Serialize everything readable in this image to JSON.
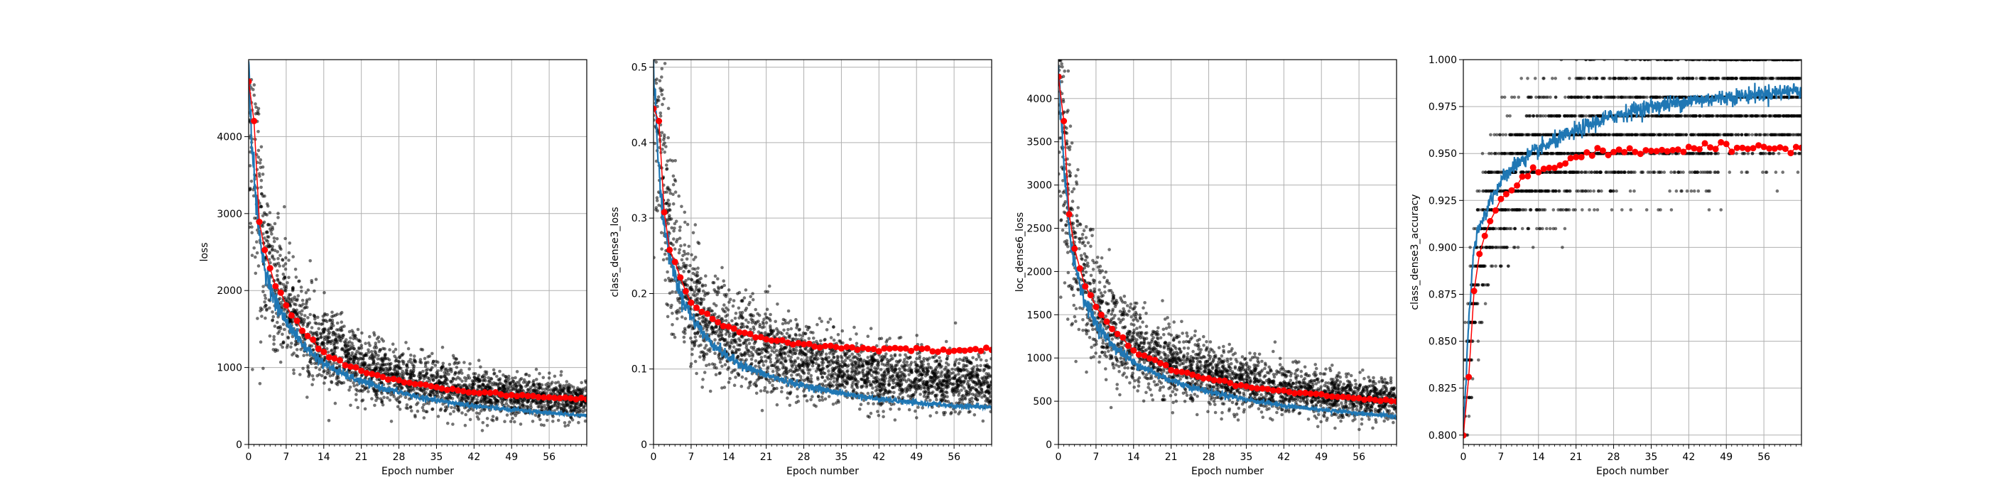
{
  "figure": {
    "colors": {
      "train": "#1f77b4",
      "validation": "#ff0000",
      "batch": "#000000",
      "grid": "#b0b0b0"
    }
  },
  "chart_data": [
    {
      "type": "line",
      "xlabel": "Epoch number",
      "ylabel": "loss",
      "xlim": [
        0,
        63
      ],
      "ylim": [
        0,
        5000
      ],
      "xticks": [
        0,
        7,
        14,
        21,
        28,
        35,
        42,
        49,
        56
      ],
      "yticks": [
        0,
        1000,
        2000,
        3000,
        4000
      ],
      "grid": true,
      "series": [
        {
          "role": "batch-scatter",
          "x": [
            0,
            1,
            2,
            3,
            5,
            7,
            10,
            14,
            18,
            21,
            25,
            28,
            32,
            35,
            40,
            42,
            46,
            49,
            53,
            56,
            60,
            63
          ],
          "y": [
            4800,
            3900,
            3000,
            2450,
            2050,
            1800,
            1500,
            1250,
            1100,
            1000,
            920,
            860,
            800,
            760,
            700,
            680,
            650,
            630,
            610,
            590,
            570,
            560
          ]
        },
        {
          "role": "train-line",
          "x": [
            0,
            1,
            2,
            3,
            5,
            7,
            10,
            14,
            18,
            21,
            25,
            28,
            32,
            35,
            40,
            42,
            46,
            49,
            53,
            56,
            60,
            63
          ],
          "y": [
            4800,
            3500,
            2700,
            2300,
            1850,
            1600,
            1300,
            1050,
            900,
            820,
            730,
            680,
            610,
            570,
            520,
            500,
            470,
            450,
            430,
            410,
            390,
            370
          ]
        },
        {
          "role": "validation-points",
          "x": [
            0,
            1,
            2,
            3,
            5,
            7,
            10,
            14,
            18,
            21,
            25,
            28,
            32,
            35,
            40,
            42,
            46,
            49,
            53,
            56,
            60,
            63
          ],
          "y": [
            4700,
            4120,
            2950,
            2500,
            2050,
            1800,
            1480,
            1200,
            1050,
            960,
            880,
            830,
            780,
            740,
            700,
            680,
            660,
            640,
            630,
            610,
            600,
            590
          ]
        }
      ]
    },
    {
      "type": "line",
      "xlabel": "Epoch number",
      "ylabel": "class_dense3_loss",
      "xlim": [
        0,
        63
      ],
      "ylim": [
        0,
        0.51
      ],
      "xticks": [
        0,
        7,
        14,
        21,
        28,
        35,
        42,
        49,
        56
      ],
      "yticks": [
        0.0,
        0.1,
        0.2,
        0.3,
        0.4,
        0.5
      ],
      "grid": true,
      "series": [
        {
          "role": "batch-scatter",
          "x": [
            0,
            1,
            2,
            3,
            5,
            7,
            10,
            14,
            18,
            21,
            25,
            28,
            32,
            35,
            40,
            42,
            46,
            49,
            53,
            56,
            60,
            63
          ],
          "y": [
            0.5,
            0.42,
            0.32,
            0.27,
            0.22,
            0.19,
            0.16,
            0.145,
            0.135,
            0.125,
            0.115,
            0.11,
            0.105,
            0.1,
            0.095,
            0.092,
            0.09,
            0.088,
            0.085,
            0.083,
            0.081,
            0.08
          ]
        },
        {
          "role": "train-line",
          "x": [
            0,
            1,
            2,
            3,
            5,
            7,
            10,
            14,
            18,
            21,
            25,
            28,
            32,
            35,
            40,
            42,
            46,
            49,
            53,
            56,
            60,
            63
          ],
          "y": [
            0.5,
            0.36,
            0.29,
            0.25,
            0.2,
            0.17,
            0.14,
            0.115,
            0.1,
            0.092,
            0.083,
            0.078,
            0.072,
            0.068,
            0.062,
            0.06,
            0.057,
            0.055,
            0.053,
            0.051,
            0.05,
            0.049
          ]
        },
        {
          "role": "validation-points",
          "x": [
            0,
            1,
            2,
            3,
            5,
            7,
            10,
            14,
            18,
            21,
            25,
            28,
            32,
            35,
            40,
            42,
            46,
            49,
            53,
            56,
            60,
            63
          ],
          "y": [
            0.45,
            0.42,
            0.31,
            0.26,
            0.22,
            0.19,
            0.17,
            0.155,
            0.145,
            0.14,
            0.135,
            0.133,
            0.13,
            0.128,
            0.127,
            0.127,
            0.126,
            0.126,
            0.125,
            0.125,
            0.125,
            0.125
          ]
        }
      ]
    },
    {
      "type": "line",
      "xlabel": "Epoch number",
      "ylabel": "loc_dense6_loss",
      "xlim": [
        0,
        63
      ],
      "ylim": [
        0,
        4450
      ],
      "xticks": [
        0,
        7,
        14,
        21,
        28,
        35,
        42,
        49,
        56
      ],
      "yticks": [
        0,
        500,
        1000,
        1500,
        2000,
        2500,
        3000,
        3500,
        4000
      ],
      "grid": true,
      "series": [
        {
          "role": "batch-scatter",
          "x": [
            0,
            1,
            2,
            3,
            5,
            7,
            10,
            14,
            18,
            21,
            25,
            28,
            32,
            35,
            40,
            42,
            46,
            49,
            53,
            56,
            60,
            63
          ],
          "y": [
            4300,
            3500,
            2700,
            2250,
            1850,
            1600,
            1350,
            1150,
            1000,
            920,
            840,
            790,
            740,
            700,
            650,
            630,
            600,
            580,
            560,
            540,
            520,
            510
          ]
        },
        {
          "role": "train-line",
          "x": [
            0,
            1,
            2,
            3,
            5,
            7,
            10,
            14,
            18,
            21,
            25,
            28,
            32,
            35,
            40,
            42,
            46,
            49,
            53,
            56,
            60,
            63
          ],
          "y": [
            4300,
            3200,
            2500,
            2100,
            1650,
            1400,
            1150,
            950,
            820,
            740,
            660,
            610,
            560,
            520,
            470,
            450,
            420,
            400,
            380,
            360,
            340,
            320
          ]
        },
        {
          "role": "validation-points",
          "x": [
            0,
            1,
            2,
            3,
            5,
            7,
            10,
            14,
            18,
            21,
            25,
            28,
            32,
            35,
            40,
            42,
            46,
            49,
            53,
            56,
            60,
            63
          ],
          "y": [
            4200,
            3700,
            2650,
            2250,
            1850,
            1600,
            1330,
            1100,
            960,
            880,
            800,
            760,
            710,
            670,
            630,
            610,
            590,
            570,
            550,
            530,
            510,
            500
          ]
        }
      ]
    },
    {
      "type": "line",
      "xlabel": "Epoch number",
      "ylabel": "class_dense3_accuracy",
      "xlim": [
        0,
        63
      ],
      "ylim": [
        0.795,
        1.0
      ],
      "xticks": [
        0,
        7,
        14,
        21,
        28,
        35,
        42,
        49,
        56
      ],
      "yticks": [
        0.8,
        0.825,
        0.85,
        0.875,
        0.9,
        0.925,
        0.95,
        0.975,
        1.0
      ],
      "yticklabels": [
        "0.800",
        "0.825",
        "0.850",
        "0.875",
        "0.900",
        "0.925",
        "0.950",
        "0.975",
        "1.000"
      ],
      "grid": true,
      "series": [
        {
          "role": "batch-scatter",
          "x": [
            0,
            1,
            2,
            3,
            5,
            7,
            10,
            14,
            18,
            21,
            25,
            28,
            32,
            35,
            40,
            42,
            46,
            49,
            53,
            56,
            60,
            63
          ],
          "y": [
            0.8,
            0.84,
            0.88,
            0.9,
            0.92,
            0.93,
            0.94,
            0.95,
            0.95,
            0.96,
            0.96,
            0.96,
            0.97,
            0.97,
            0.97,
            0.97,
            0.97,
            0.98,
            0.98,
            0.98,
            0.98,
            0.98
          ]
        },
        {
          "role": "train-line",
          "x": [
            0,
            1,
            2,
            3,
            5,
            7,
            10,
            14,
            18,
            21,
            25,
            28,
            32,
            35,
            40,
            42,
            46,
            49,
            53,
            56,
            60,
            63
          ],
          "y": [
            0.8,
            0.86,
            0.9,
            0.91,
            0.925,
            0.935,
            0.945,
            0.952,
            0.958,
            0.962,
            0.967,
            0.97,
            0.973,
            0.975,
            0.977,
            0.978,
            0.979,
            0.98,
            0.981,
            0.982,
            0.983,
            0.984
          ]
        },
        {
          "role": "validation-points",
          "x": [
            0,
            1,
            2,
            3,
            5,
            7,
            10,
            14,
            18,
            21,
            25,
            28,
            32,
            35,
            40,
            42,
            46,
            49,
            53,
            56,
            60,
            63
          ],
          "y": [
            0.8,
            0.832,
            0.876,
            0.898,
            0.915,
            0.925,
            0.934,
            0.941,
            0.945,
            0.948,
            0.95,
            0.951,
            0.951,
            0.952,
            0.952,
            0.952,
            0.953,
            0.953,
            0.953,
            0.953,
            0.953,
            0.953
          ]
        }
      ]
    }
  ]
}
